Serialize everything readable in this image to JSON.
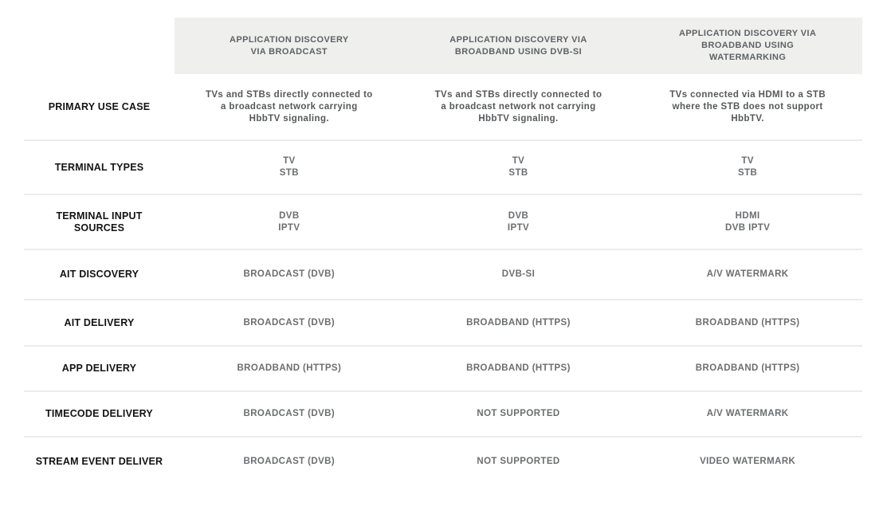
{
  "colors": {
    "page_bg": "#ffffff",
    "header_bg": "#efefed",
    "header_text": "#5e6366",
    "label_text": "#131313",
    "cell_text": "#6b6e70",
    "usecase_text": "#55585a",
    "divider": "#ececec"
  },
  "table": {
    "headers": [
      "APPLICATION DISCOVERY\nVIA BROADCAST",
      "APPLICATION DISCOVERY VIA\nBROADBAND USING DVB-SI",
      "APPLICATION DISCOVERY VIA\nBROADBAND USING\nWATERMARKING"
    ],
    "rows": [
      {
        "label": "PRIMARY USE CASE",
        "cells": [
          "TVs and STBs directly connected to\na broadcast network carrying\nHbbTV signaling.",
          "TVs and STBs directly connected to\na broadcast network not carrying\nHbbTV signaling.",
          "TVs connected via HDMI to a STB\nwhere the STB does not support\nHbbTV."
        ]
      },
      {
        "label": "TERMINAL TYPES",
        "cells": [
          "TV\nSTB",
          "TV\nSTB",
          "TV\nSTB"
        ]
      },
      {
        "label": "TERMINAL INPUT\nSOURCES",
        "cells": [
          "DVB\nIPTV",
          "DVB\nIPTV",
          "HDMI\nDVB IPTV"
        ]
      },
      {
        "label": "AIT DISCOVERY",
        "cells": [
          "BROADCAST (DVB)",
          "DVB-SI",
          "A/V WATERMARK"
        ]
      },
      {
        "label": "AIT DELIVERY",
        "cells": [
          "BROADCAST (DVB)",
          "BROADBAND (HTTPS)",
          "BROADBAND (HTTPS)"
        ]
      },
      {
        "label": "APP DELIVERY",
        "cells": [
          "BROADBAND (HTTPS)",
          "BROADBAND (HTTPS)",
          "BROADBAND (HTTPS)"
        ]
      },
      {
        "label": "TIMECODE DELIVERY",
        "cells": [
          "BROADCAST (DVB)",
          "NOT SUPPORTED",
          "A/V WATERMARK"
        ]
      },
      {
        "label": "STREAM EVENT DELIVER",
        "cells": [
          "BROADCAST (DVB)",
          "NOT SUPPORTED",
          "VIDEO WATERMARK"
        ]
      }
    ]
  },
  "chart_data": {
    "type": "table",
    "title": "HbbTV application discovery methods comparison",
    "columns": [
      "",
      "APPLICATION DISCOVERY VIA BROADCAST",
      "APPLICATION DISCOVERY VIA BROADBAND USING DVB-SI",
      "APPLICATION DISCOVERY VIA BROADBAND USING WATERMARKING"
    ],
    "rows": [
      [
        "PRIMARY USE CASE",
        "TVs and STBs directly connected to a broadcast network carrying HbbTV signaling.",
        "TVs and STBs directly connected to a broadcast network not carrying HbbTV signaling.",
        "TVs connected via HDMI to a STB where the STB does not support HbbTV."
      ],
      [
        "TERMINAL TYPES",
        "TV, STB",
        "TV, STB",
        "TV, STB"
      ],
      [
        "TERMINAL INPUT SOURCES",
        "DVB, IPTV",
        "DVB, IPTV",
        "HDMI, DVB, IPTV"
      ],
      [
        "AIT DISCOVERY",
        "BROADCAST (DVB)",
        "DVB-SI",
        "A/V WATERMARK"
      ],
      [
        "AIT DELIVERY",
        "BROADCAST (DVB)",
        "BROADBAND (HTTPS)",
        "BROADBAND (HTTPS)"
      ],
      [
        "APP DELIVERY",
        "BROADBAND (HTTPS)",
        "BROADBAND (HTTPS)",
        "BROADBAND (HTTPS)"
      ],
      [
        "TIMECODE DELIVERY",
        "BROADCAST (DVB)",
        "NOT SUPPORTED",
        "A/V WATERMARK"
      ],
      [
        "STREAM EVENT DELIVER",
        "BROADCAST (DVB)",
        "NOT SUPPORTED",
        "VIDEO WATERMARK"
      ]
    ],
    "layout": {
      "header_background": "#efefed",
      "grid": "horizontal-dividers-only",
      "text_align": "center"
    }
  }
}
